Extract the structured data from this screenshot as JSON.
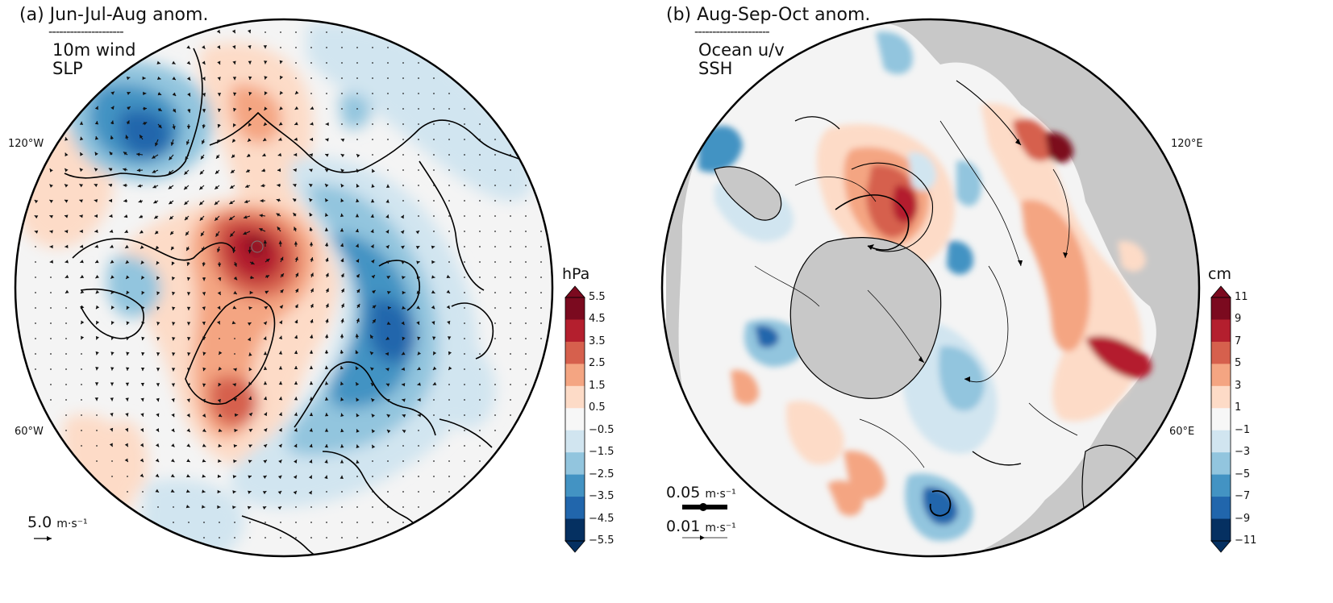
{
  "panel_a": {
    "title": "(a) Jun-Jul-Aug anom.",
    "dashes": "---------------------",
    "variables": [
      "10m wind",
      "SLP"
    ],
    "lon_labels": [
      "120°W",
      "60°W"
    ],
    "colorbar": {
      "unit": "hPa",
      "ticks": [
        "5.5",
        "4.5",
        "3.5",
        "2.5",
        "1.5",
        "0.5",
        "−0.5",
        "−1.5",
        "−2.5",
        "−3.5",
        "−4.5",
        "−5.5"
      ],
      "colors": [
        "#7b0a1f",
        "#b41f2e",
        "#d6604d",
        "#f4a582",
        "#fddbc7",
        "#f7f7f7",
        "#d1e5f0",
        "#92c5de",
        "#4393c3",
        "#2166ac",
        "#053061"
      ]
    },
    "scale": {
      "value": "5.0",
      "unit": "m·s⁻¹"
    }
  },
  "panel_b": {
    "title": "(b) Aug-Sep-Oct anom.",
    "dashes": "---------------------",
    "variables": [
      "Ocean u/v",
      "SSH"
    ],
    "lon_labels": [
      "120°E",
      "60°E"
    ],
    "colorbar": {
      "unit": "cm",
      "ticks": [
        "11",
        "9",
        "7",
        "5",
        "3",
        "1",
        "−1",
        "−3",
        "−5",
        "−7",
        "−9",
        "−11"
      ],
      "colors": [
        "#7b0a1f",
        "#b41f2e",
        "#d6604d",
        "#f4a582",
        "#fddbc7",
        "#f7f7f7",
        "#d1e5f0",
        "#92c5de",
        "#4393c3",
        "#2166ac",
        "#053061"
      ]
    },
    "scales": [
      {
        "value": "0.05",
        "unit": "m·s⁻¹"
      },
      {
        "value": "0.01",
        "unit": "m·s⁻¹"
      }
    ]
  },
  "colors": {
    "land_gray": "#c8c8c8",
    "coast": "#000000",
    "neutral": "#f4f4f4"
  }
}
